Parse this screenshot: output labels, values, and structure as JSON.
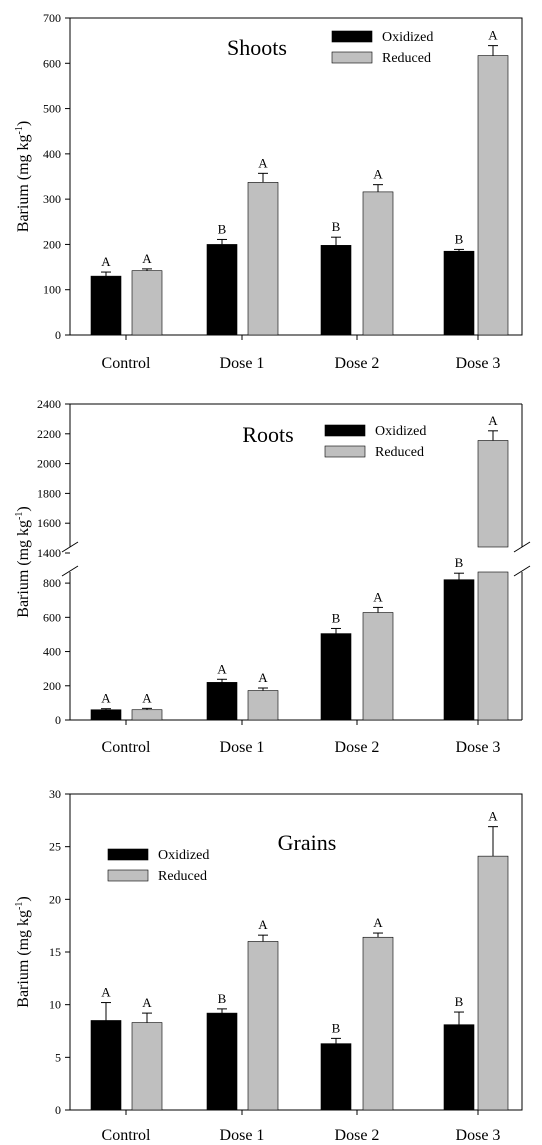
{
  "chart_data": [
    {
      "type": "bar",
      "title": "Shoots",
      "ylabel": "Barium (mg kg-1)",
      "ylabel_main": "Barium (mg kg",
      "ylabel_sup": "-1",
      "ylabel_close": ")",
      "ylim": [
        0,
        700
      ],
      "yticks": [
        0,
        100,
        200,
        300,
        400,
        500,
        600,
        700
      ],
      "categories": [
        "Control",
        "Dose 1",
        "Dose 2",
        "Dose 3"
      ],
      "legend_position": "top-right",
      "series": [
        {
          "name": "Oxidized",
          "color": "#000000",
          "values": [
            130,
            200,
            198,
            185
          ],
          "errors": [
            9,
            11,
            18,
            4
          ],
          "letters": [
            "A",
            "B",
            "B",
            "B"
          ]
        },
        {
          "name": "Reduced",
          "color": "#bfbfbf",
          "values": [
            142,
            337,
            316,
            617
          ],
          "errors": [
            4,
            20,
            16,
            22
          ],
          "letters": [
            "A",
            "A",
            "A",
            "A"
          ]
        }
      ]
    },
    {
      "type": "bar",
      "title": "Roots",
      "ylabel": "Barium (mg kg-1)",
      "ylabel_main": "Barium (mg kg",
      "ylabel_sup": "-1",
      "ylabel_close": ")",
      "ylim": [
        0,
        2400
      ],
      "axis_break": [
        900,
        1400
      ],
      "yticks": [
        0,
        200,
        400,
        600,
        800,
        1400,
        1600,
        1800,
        2000,
        2200,
        2400
      ],
      "categories": [
        "Control",
        "Dose 1",
        "Dose 2",
        "Dose 3"
      ],
      "legend_position": "top-right",
      "series": [
        {
          "name": "Oxidized",
          "color": "#000000",
          "values": [
            60,
            220,
            505,
            820
          ],
          "errors": [
            6,
            18,
            30,
            38
          ],
          "letters": [
            "A",
            "A",
            "B",
            "B"
          ]
        },
        {
          "name": "Reduced",
          "color": "#bfbfbf",
          "values": [
            60,
            172,
            628,
            2155
          ],
          "errors": [
            8,
            15,
            30,
            65
          ],
          "letters": [
            "A",
            "A",
            "A",
            "A"
          ]
        }
      ]
    },
    {
      "type": "bar",
      "title": "Grains",
      "ylabel": "Barium (mg kg-1)",
      "ylabel_main": "Barium (mg kg",
      "ylabel_sup": "-1",
      "ylabel_close": ")",
      "ylim": [
        0,
        30
      ],
      "yticks": [
        0,
        5,
        10,
        15,
        20,
        25,
        30
      ],
      "categories": [
        "Control",
        "Dose 1",
        "Dose 2",
        "Dose 3"
      ],
      "legend_position": "top-left",
      "series": [
        {
          "name": "Oxidized",
          "color": "#000000",
          "values": [
            8.5,
            9.2,
            6.3,
            8.1
          ],
          "errors": [
            1.7,
            0.4,
            0.5,
            1.2
          ],
          "letters": [
            "A",
            "B",
            "B",
            "B"
          ]
        },
        {
          "name": "Reduced",
          "color": "#bfbfbf",
          "values": [
            8.3,
            16.0,
            16.4,
            24.1
          ],
          "errors": [
            0.9,
            0.6,
            0.4,
            2.8
          ],
          "letters": [
            "A",
            "A",
            "A",
            "A"
          ]
        }
      ]
    }
  ]
}
